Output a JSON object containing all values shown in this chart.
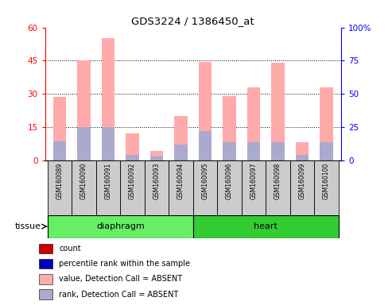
{
  "title": "GDS3224 / 1386450_at",
  "samples": [
    "GSM160089",
    "GSM160090",
    "GSM160091",
    "GSM160092",
    "GSM160093",
    "GSM160094",
    "GSM160095",
    "GSM160096",
    "GSM160097",
    "GSM160098",
    "GSM160099",
    "GSM160100"
  ],
  "pink_values": [
    28.5,
    45.0,
    55.0,
    12.0,
    4.0,
    20.0,
    44.5,
    29.0,
    33.0,
    44.0,
    8.0,
    33.0
  ],
  "blue_values": [
    8.5,
    15.0,
    15.0,
    2.5,
    1.5,
    7.0,
    13.0,
    8.0,
    8.0,
    8.0,
    2.5,
    8.0
  ],
  "ylim_left": [
    0,
    60
  ],
  "ylim_right": [
    0,
    100
  ],
  "yticks_left": [
    0,
    15,
    30,
    45,
    60
  ],
  "yticks_right": [
    0,
    25,
    50,
    75,
    100
  ],
  "ytick_labels_right": [
    "0",
    "25",
    "50",
    "75",
    "100%"
  ],
  "n_diaphragm": 6,
  "n_heart": 6,
  "diaphragm_color": "#66ee66",
  "heart_color": "#33cc33",
  "bar_width": 0.55,
  "pink_color": "#ffaaaa",
  "blue_color": "#aaaacc",
  "gray_bg": "#cccccc",
  "legend_items": [
    {
      "color": "#cc0000",
      "label": "count"
    },
    {
      "color": "#0000bb",
      "label": "percentile rank within the sample"
    },
    {
      "color": "#ffaaaa",
      "label": "value, Detection Call = ABSENT"
    },
    {
      "color": "#aaaacc",
      "label": "rank, Detection Call = ABSENT"
    }
  ]
}
